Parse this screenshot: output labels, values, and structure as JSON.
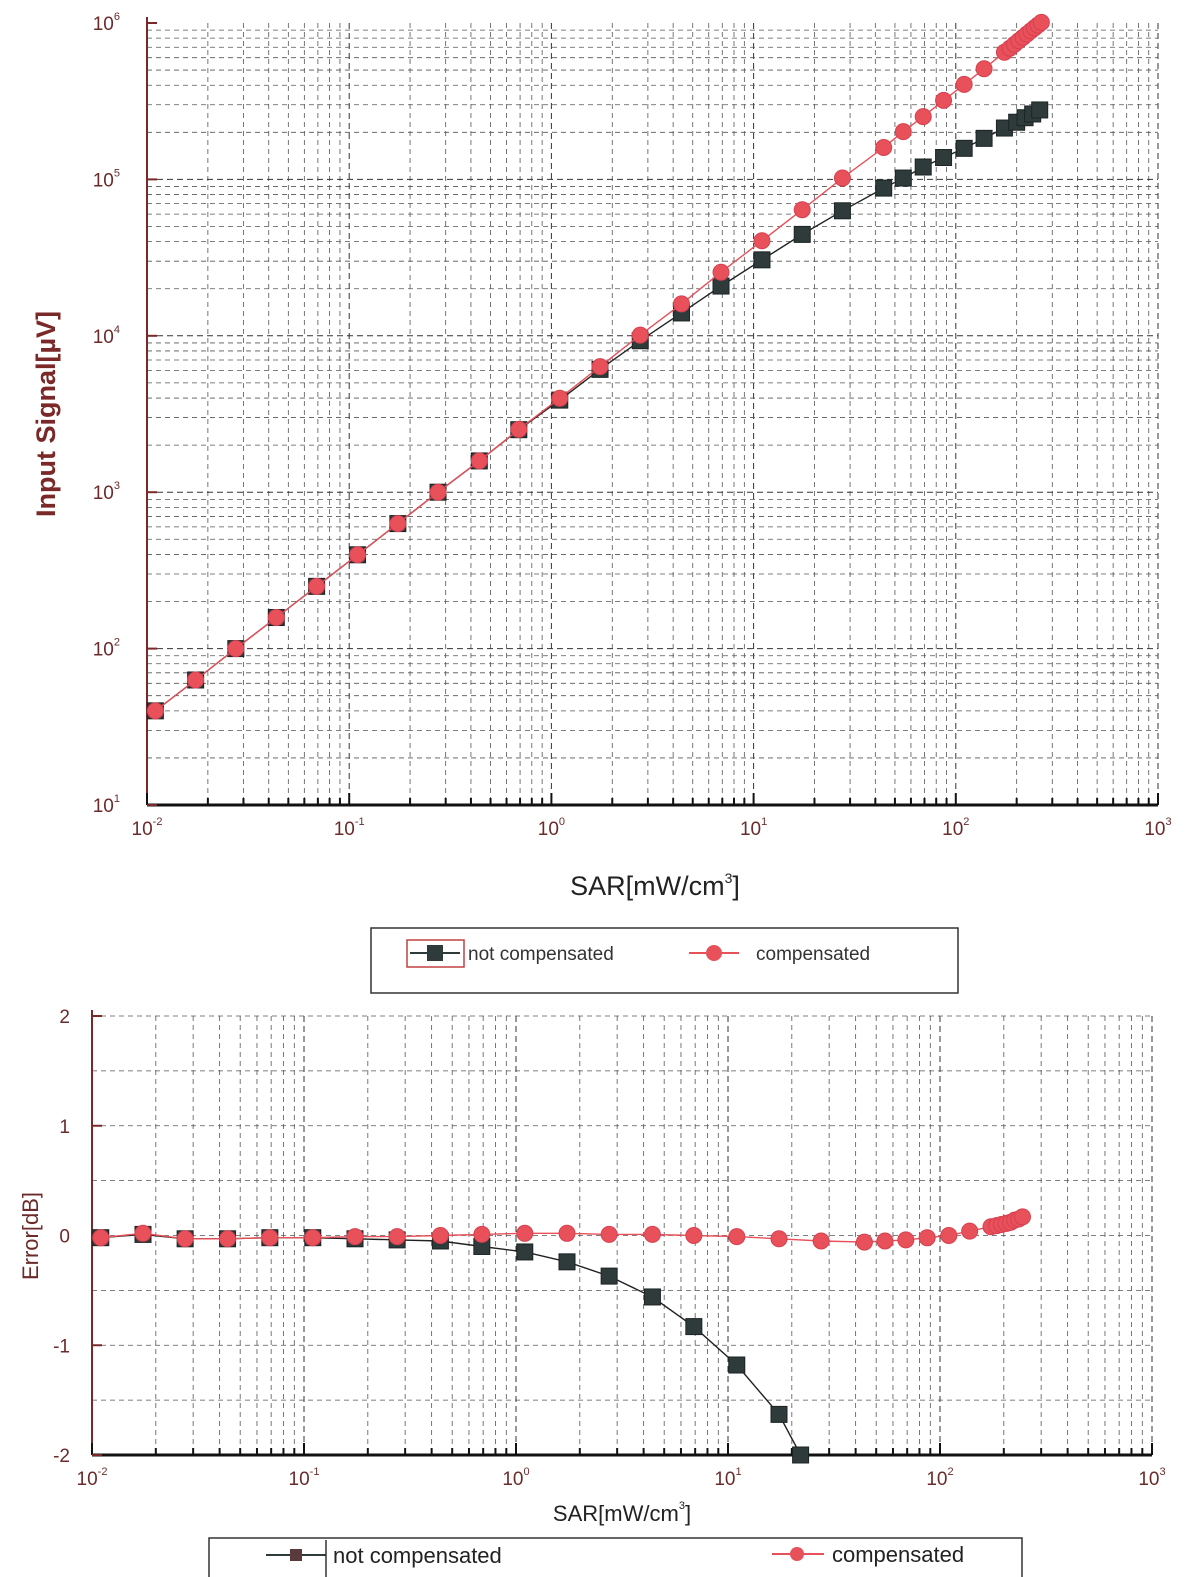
{
  "chart_data": [
    {
      "id": "top",
      "type": "line",
      "xlabel_base": "SAR[mW/cm",
      "xlabel_sup": "3",
      "xlabel_end": "]",
      "ylabel": "Input Signal[µV]",
      "xscale": "log",
      "yscale": "log",
      "xlim": [
        0.01,
        1000
      ],
      "ylim": [
        10,
        1000000
      ],
      "x_ticks": [
        {
          "base": "10",
          "exp": "-2"
        },
        {
          "base": "10",
          "exp": "-1"
        },
        {
          "base": "10",
          "exp": "0"
        },
        {
          "base": "10",
          "exp": "1"
        },
        {
          "base": "10",
          "exp": "2"
        },
        {
          "base": "10",
          "exp": "3"
        }
      ],
      "y_ticks": [
        {
          "base": "10",
          "exp": "1"
        },
        {
          "base": "10",
          "exp": "2"
        },
        {
          "base": "10",
          "exp": "3"
        },
        {
          "base": "10",
          "exp": "4"
        },
        {
          "base": "10",
          "exp": "5"
        },
        {
          "base": "10",
          "exp": "6"
        }
      ],
      "grid": true,
      "series": [
        {
          "name": "not compensated",
          "color": "#2f3a3a",
          "marker": "square",
          "x": [
            0.011,
            0.0174,
            0.0275,
            0.0436,
            0.069,
            0.11,
            0.174,
            0.275,
            0.44,
            0.69,
            1.1,
            1.74,
            2.75,
            4.4,
            6.9,
            11,
            17.4,
            27.5,
            44,
            55,
            69,
            87,
            110,
            138,
            174,
            200,
            220,
            240,
            260
          ],
          "values": [
            40,
            63,
            100,
            158,
            250,
            398,
            630,
            1000,
            1585,
            2510,
            3880,
            6100,
            9300,
            14000,
            20800,
            30600,
            44500,
            63000,
            88000,
            102000,
            120000,
            138000,
            158000,
            183000,
            213000,
            232000,
            248000,
            262000,
            278000
          ]
        },
        {
          "name": "compensated",
          "color": "#e8505a",
          "marker": "circle",
          "x": [
            0.011,
            0.0174,
            0.0275,
            0.0436,
            0.069,
            0.11,
            0.174,
            0.275,
            0.44,
            0.69,
            1.1,
            1.74,
            2.75,
            4.4,
            6.9,
            11,
            17.4,
            27.5,
            44,
            55,
            69,
            87,
            110,
            138,
            174,
            185,
            195,
            205,
            215,
            225,
            235,
            245,
            255,
            265
          ],
          "values": [
            40,
            63,
            100,
            158,
            250,
            398,
            630,
            1000,
            1585,
            2520,
            3990,
            6350,
            10100,
            16000,
            25500,
            40500,
            64000,
            102000,
            160000,
            202000,
            252000,
            320000,
            405000,
            510000,
            650000,
            690000,
            730000,
            770000,
            810000,
            850000,
            890000,
            930000,
            970000,
            1010000
          ]
        }
      ],
      "legend": [
        "not compensated",
        "compensated"
      ],
      "legend_position": "bottom"
    },
    {
      "id": "bottom",
      "type": "line",
      "xlabel_base": "SAR[mW/cm",
      "xlabel_sup": "3",
      "xlabel_end": "]",
      "ylabel": "Error[dB]",
      "xscale": "log",
      "xlim": [
        0.01,
        1000
      ],
      "ylim": [
        -2,
        2
      ],
      "x_ticks": [
        {
          "base": "10",
          "exp": "-2"
        },
        {
          "base": "10",
          "exp": "-1"
        },
        {
          "base": "10",
          "exp": "0"
        },
        {
          "base": "10",
          "exp": "1"
        },
        {
          "base": "10",
          "exp": "2"
        },
        {
          "base": "10",
          "exp": "3"
        }
      ],
      "y_ticks": [
        "2",
        "1",
        "0",
        "-1",
        "-2"
      ],
      "grid": true,
      "series": [
        {
          "name": "not compensated",
          "color": "#2f3a3a",
          "marker": "square",
          "x": [
            0.011,
            0.0174,
            0.0275,
            0.0436,
            0.069,
            0.11,
            0.174,
            0.275,
            0.44,
            0.69,
            1.1,
            1.74,
            2.75,
            4.4,
            6.9,
            11,
            17.4,
            22
          ],
          "values": [
            -0.02,
            0.01,
            -0.03,
            -0.03,
            -0.02,
            -0.02,
            -0.03,
            -0.04,
            -0.05,
            -0.1,
            -0.15,
            -0.24,
            -0.37,
            -0.56,
            -0.83,
            -1.18,
            -1.63,
            -2.0
          ]
        },
        {
          "name": "compensated",
          "color": "#e8505a",
          "marker": "circle",
          "x": [
            0.011,
            0.0174,
            0.0275,
            0.0436,
            0.069,
            0.11,
            0.174,
            0.275,
            0.44,
            0.69,
            1.1,
            1.74,
            2.75,
            4.4,
            6.9,
            11,
            17.4,
            27.5,
            44,
            55,
            69,
            87,
            110,
            138,
            174,
            185,
            195,
            205,
            215,
            225,
            235,
            245
          ],
          "values": [
            -0.02,
            0.02,
            -0.03,
            -0.03,
            -0.02,
            -0.02,
            -0.01,
            -0.01,
            0.0,
            0.01,
            0.02,
            0.02,
            0.01,
            0.01,
            0.0,
            -0.01,
            -0.03,
            -0.05,
            -0.06,
            -0.05,
            -0.04,
            -0.02,
            0.0,
            0.04,
            0.08,
            0.09,
            0.1,
            0.11,
            0.12,
            0.14,
            0.15,
            0.17
          ]
        }
      ],
      "legend": [
        "not compensated",
        "compensated"
      ],
      "legend_position": "bottom"
    }
  ]
}
